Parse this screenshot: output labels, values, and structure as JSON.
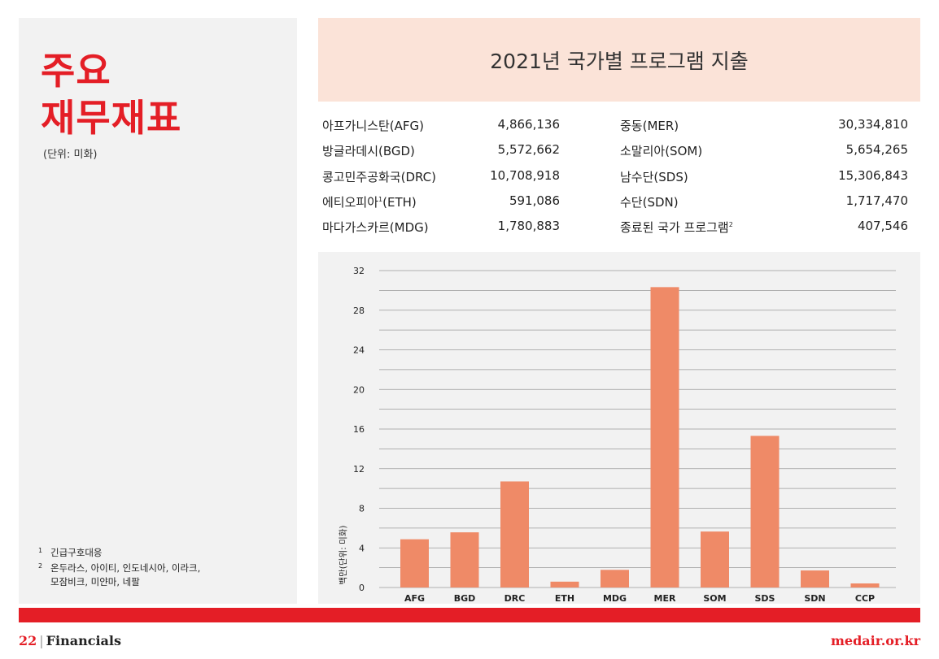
{
  "sidebar": {
    "title_line1": "주요",
    "title_line2": "재무재표",
    "unit_note": "(단위: 미화)",
    "footnotes": [
      {
        "num": "1",
        "text": "긴급구호대응"
      },
      {
        "num": "2",
        "text": "온두라스, 아이티, 인도네시아, 이라크,",
        "text2": "모잠비크, 미얀마, 네팔"
      }
    ]
  },
  "header": {
    "title": "2021년 국가별 프로그램 지출"
  },
  "table": {
    "left": [
      {
        "name": "아프가니스탄(AFG)",
        "value": "4,866,136"
      },
      {
        "name": "방글라데시(BGD)",
        "value": "5,572,662"
      },
      {
        "name": "콩고민주공화국(DRC)",
        "value": "10,708,918"
      },
      {
        "name": "에티오피아",
        "sup": "1",
        "suffix": "(ETH)",
        "value": "591,086"
      },
      {
        "name": "마다가스카르(MDG)",
        "value": "1,780,883"
      }
    ],
    "right": [
      {
        "name": "중동(MER)",
        "value": "30,334,810"
      },
      {
        "name": "소말리아(SOM)",
        "value": "5,654,265"
      },
      {
        "name": "남수단(SDS)",
        "value": "15,306,843"
      },
      {
        "name": "수단(SDN)",
        "value": "1,717,470"
      },
      {
        "name": "종료된 국가 프로그램",
        "sup": "2",
        "suffix": "",
        "value": "407,546"
      }
    ]
  },
  "chart_data": {
    "type": "bar",
    "categories": [
      "AFG",
      "BGD",
      "DRC",
      "ETH",
      "MDG",
      "MER",
      "SOM",
      "SDS",
      "SDN",
      "CCP"
    ],
    "values": [
      4.87,
      5.57,
      10.71,
      0.59,
      1.78,
      30.33,
      5.65,
      15.31,
      1.72,
      0.41
    ],
    "ylabel": "백만(단위: 미화)",
    "yticks": [
      0,
      4,
      8,
      12,
      16,
      20,
      24,
      28,
      32
    ],
    "ylim": [
      0,
      32
    ],
    "minor_gridlines_every": 2,
    "bar_color": "#ef8a67",
    "grid": true
  },
  "footer": {
    "page_number": "22",
    "section": "Financials",
    "site": "medair.or.kr"
  },
  "colors": {
    "accent": "#e41e26",
    "header_bg": "#fbe3d8",
    "panel_bg": "#f2f2f2"
  }
}
